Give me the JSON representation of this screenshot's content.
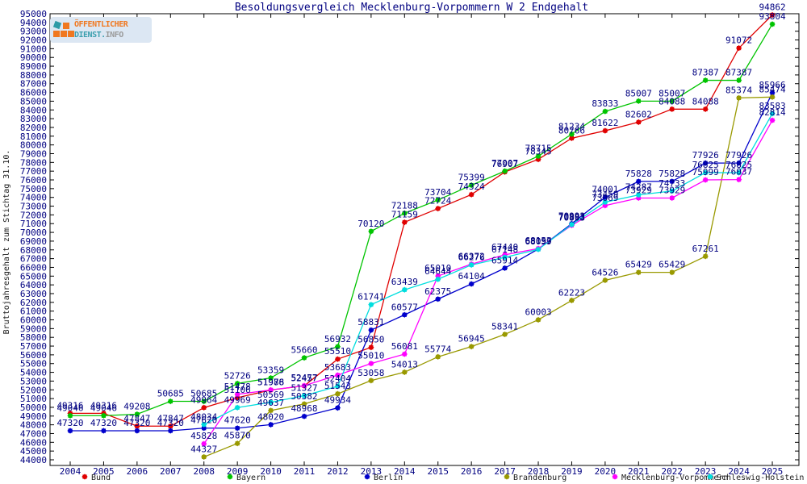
{
  "logo": {
    "line1": "ÖFFENTLICHER",
    "line2_a": "DIENST.",
    "line2_b": "INFO"
  },
  "colors": {
    "label_text": "#000080",
    "tick_text": "#000080",
    "title_text": "#000080",
    "legend_text": "#1a1a1a",
    "axis": "#000000",
    "ylabel_text": "#1a1a1a"
  },
  "chart_data": {
    "type": "line",
    "title": "Besoldungsvergleich Mecklenburg-Vorpommern W 2 Endgehalt",
    "xlabel": "",
    "ylabel": "Bruttojahresgehalt zum Stichtag 31.10.",
    "x": [
      2004,
      2005,
      2006,
      2007,
      2008,
      2009,
      2010,
      2011,
      2012,
      2013,
      2014,
      2015,
      2016,
      2017,
      2018,
      2019,
      2020,
      2021,
      2022,
      2023,
      2024,
      2025
    ],
    "ylim": [
      44000,
      95000
    ],
    "ytick_step": 1000,
    "grid": false,
    "legend_position": "bottom",
    "point_labels": true,
    "series": [
      {
        "name": "Bund",
        "color": "#e00000",
        "values": [
          49316,
          49316,
          47847,
          47847,
          49964,
          51106,
          51976,
          52457,
          55510,
          56850,
          71159,
          72724,
          74324,
          76907,
          78345,
          80766,
          81622,
          82602,
          84088,
          84088,
          91072,
          94862
        ]
      },
      {
        "name": "Bayern",
        "color": "#00c400",
        "values": [
          49046,
          49046,
          49208,
          50685,
          50685,
          52726,
          53359,
          55660,
          56932,
          70120,
          72188,
          73704,
          75399,
          77007,
          78715,
          81234,
          83833,
          85007,
          85007,
          87387,
          87387,
          93804
        ]
      },
      {
        "name": "Berlin",
        "color": "#0000cc",
        "values": [
          47320,
          47320,
          47320,
          47320,
          47620,
          47620,
          48020,
          48968,
          49934,
          58831,
          60577,
          62375,
          64104,
          65914,
          68097,
          70993,
          74001,
          75828,
          75828,
          77926,
          77926,
          85966
        ]
      },
      {
        "name": "Brandenburg",
        "color": "#999900",
        "values": [
          null,
          null,
          null,
          null,
          44327,
          45870,
          49637,
          50382,
          51543,
          53058,
          54013,
          55774,
          56945,
          58341,
          60003,
          62223,
          64526,
          65429,
          65429,
          67261,
          85374,
          85474
        ]
      },
      {
        "name": "Mecklenburg-Vorpommern",
        "color": "#ff00ff",
        "values": [
          null,
          null,
          null,
          null,
          45828,
          51478,
          51988,
          52477,
          53683,
          55010,
          56081,
          65010,
          66372,
          67440,
          68153,
          70803,
          73069,
          73929,
          73929,
          75999,
          76037,
          82814
        ]
      },
      {
        "name": "Schleswig-Holstein",
        "color": "#00dede",
        "values": [
          null,
          null,
          null,
          null,
          48034,
          49969,
          50569,
          51327,
          52404,
          61741,
          63439,
          64644,
          66276,
          67148,
          68059,
          70893,
          73459,
          74287,
          74733,
          76825,
          76825,
          83583
        ]
      }
    ]
  }
}
